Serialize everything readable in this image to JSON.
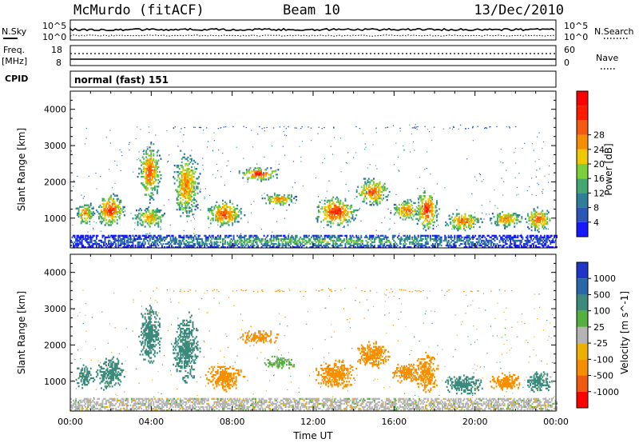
{
  "header": {
    "station": "McMurdo (fitACF)",
    "beam": "Beam 10",
    "date": "13/Dec/2010"
  },
  "top_panels": {
    "nsky_label": "N.Sky",
    "nsky_hi": "10^5",
    "nsky_lo": "10^0",
    "nsearch_label": "N.Search",
    "nsearch_hi": "10^5",
    "nsearch_lo": "10^0",
    "freq_label_1": "Freq.",
    "freq_label_2": "[MHz]",
    "freq_hi": "18",
    "freq_lo": "8",
    "nave_label": "Nave",
    "nave_hi": "60",
    "nave_lo": "0",
    "cpid_label": "CPID",
    "cpid_value": "normal (fast) 151"
  },
  "chart_data": [
    {
      "type": "heatmap",
      "name": "power",
      "ylabel": "Slant Range [km]",
      "ylim": [
        180,
        4500
      ],
      "yticks": [
        "1000",
        "2000",
        "3000",
        "4000"
      ],
      "colorbar_label": "Power [dB]",
      "colorbar_ticks": [
        "4",
        "8",
        "12",
        "16",
        "20",
        "24",
        "28"
      ],
      "colorscale": [
        "#1818ff",
        "#2a57b5",
        "#2f7f9a",
        "#44a870",
        "#7dcf3a",
        "#f0c800",
        "#f58f00",
        "#f55a10",
        "#ff1a00",
        "#ff0000"
      ],
      "echo_regions": [
        {
          "t0": 0.2,
          "t1": 1.2,
          "r0": 750,
          "r1": 1450,
          "peak": 22
        },
        {
          "t0": 1.2,
          "t1": 2.7,
          "r0": 700,
          "r1": 1700,
          "peak": 26
        },
        {
          "t0": 3.3,
          "t1": 4.5,
          "r0": 1400,
          "r1": 3100,
          "peak": 24
        },
        {
          "t0": 3.0,
          "t1": 4.8,
          "r0": 700,
          "r1": 1300,
          "peak": 20
        },
        {
          "t0": 5.0,
          "t1": 6.4,
          "r0": 900,
          "r1": 2900,
          "peak": 22
        },
        {
          "t0": 6.6,
          "t1": 8.6,
          "r0": 700,
          "r1": 1500,
          "peak": 25
        },
        {
          "t0": 8.2,
          "t1": 10.4,
          "r0": 2000,
          "r1": 2400,
          "peak": 27
        },
        {
          "t0": 9.4,
          "t1": 11.2,
          "r0": 1300,
          "r1": 1700,
          "peak": 22
        },
        {
          "t0": 12.0,
          "t1": 14.2,
          "r0": 700,
          "r1": 1600,
          "peak": 27
        },
        {
          "t0": 14.0,
          "t1": 15.8,
          "r0": 1300,
          "r1": 2100,
          "peak": 25
        },
        {
          "t0": 15.8,
          "t1": 17.4,
          "r0": 900,
          "r1": 1500,
          "peak": 24
        },
        {
          "t0": 17.0,
          "t1": 18.2,
          "r0": 600,
          "r1": 1800,
          "peak": 27
        },
        {
          "t0": 18.4,
          "t1": 20.4,
          "r0": 600,
          "r1": 1200,
          "peak": 23
        },
        {
          "t0": 20.6,
          "t1": 22.4,
          "r0": 700,
          "r1": 1200,
          "peak": 22
        },
        {
          "t0": 22.4,
          "t1": 23.8,
          "r0": 600,
          "r1": 1300,
          "peak": 24
        },
        {
          "t0": 0.0,
          "t1": 24.0,
          "r0": 180,
          "r1": 500,
          "peak": 14
        }
      ]
    },
    {
      "type": "heatmap",
      "name": "velocity",
      "xlabel": "Time UT",
      "xticks": [
        "00:00",
        "04:00",
        "08:00",
        "12:00",
        "16:00",
        "20:00",
        "00:00"
      ],
      "xlim": [
        0,
        24
      ],
      "ylabel": "Slant Range [km]",
      "ylim": [
        180,
        4500
      ],
      "yticks": [
        "1000",
        "2000",
        "3000",
        "4000"
      ],
      "colorbar_label": "Velocity [m s^-1]",
      "colorbar_ticks": [
        "1000",
        "500",
        "100",
        "25",
        "-25",
        "-100",
        "-500",
        "-1000"
      ],
      "colorscale": [
        "#1f35c8",
        "#2a67a8",
        "#3c8a7c",
        "#55b040",
        "#b4b4b4",
        "#ebb000",
        "#f58f00",
        "#f05a10",
        "#ff0000"
      ],
      "echo_regions": [
        {
          "t0": 0.2,
          "t1": 1.2,
          "r0": 750,
          "r1": 1450,
          "v": 200
        },
        {
          "t0": 1.2,
          "t1": 2.7,
          "r0": 700,
          "r1": 1700,
          "v": 300
        },
        {
          "t0": 3.3,
          "t1": 4.5,
          "r0": 1400,
          "r1": 3100,
          "v": 300
        },
        {
          "t0": 5.0,
          "t1": 6.4,
          "r0": 900,
          "r1": 2900,
          "v": 250
        },
        {
          "t0": 6.6,
          "t1": 8.6,
          "r0": 700,
          "r1": 1500,
          "v": -150
        },
        {
          "t0": 8.2,
          "t1": 10.4,
          "r0": 2000,
          "r1": 2400,
          "v": -200
        },
        {
          "t0": 9.4,
          "t1": 11.2,
          "r0": 1300,
          "r1": 1700,
          "v": 50
        },
        {
          "t0": 12.0,
          "t1": 14.2,
          "r0": 700,
          "r1": 1600,
          "v": -300
        },
        {
          "t0": 14.0,
          "t1": 15.8,
          "r0": 1300,
          "r1": 2100,
          "v": -300
        },
        {
          "t0": 15.8,
          "t1": 17.4,
          "r0": 900,
          "r1": 1500,
          "v": -300
        },
        {
          "t0": 17.0,
          "t1": 18.2,
          "r0": 600,
          "r1": 1800,
          "v": -300
        },
        {
          "t0": 18.4,
          "t1": 20.4,
          "r0": 600,
          "r1": 1200,
          "v": 150
        },
        {
          "t0": 20.6,
          "t1": 22.4,
          "r0": 700,
          "r1": 1200,
          "v": -250
        },
        {
          "t0": 22.4,
          "t1": 23.8,
          "r0": 600,
          "r1": 1300,
          "v": 150
        },
        {
          "t0": 0.0,
          "t1": 24.0,
          "r0": 180,
          "r1": 500,
          "v": 0
        }
      ]
    }
  ]
}
